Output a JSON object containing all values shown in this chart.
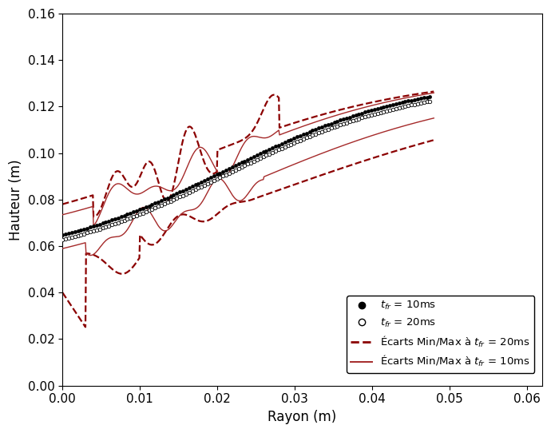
{
  "xlabel": "Rayon (m)",
  "ylabel": "Hauteur (m)",
  "xlim": [
    0.0,
    0.062
  ],
  "ylim": [
    0.0,
    0.16
  ],
  "xticks": [
    0.0,
    0.01,
    0.02,
    0.03,
    0.04,
    0.05,
    0.06
  ],
  "yticks": [
    0.0,
    0.02,
    0.04,
    0.06,
    0.08,
    0.1,
    0.12,
    0.14,
    0.16
  ],
  "color_dashed": "#8B0000",
  "color_solid": "#A52A2A",
  "xlabel_fontsize": 12,
  "ylabel_fontsize": 12,
  "tick_fontsize": 11,
  "legend_fontsize": 9.5,
  "dot_10ms_label": "$t_{fr}$ = 10ms",
  "dot_20ms_label": "$t_{fr}$ = 20ms",
  "env_20ms_label": "Écarts Min/Max à $t_{fr}$ = 20ms",
  "env_10ms_label": "Écarts Min/Max à $t_{fr}$ = 10ms"
}
